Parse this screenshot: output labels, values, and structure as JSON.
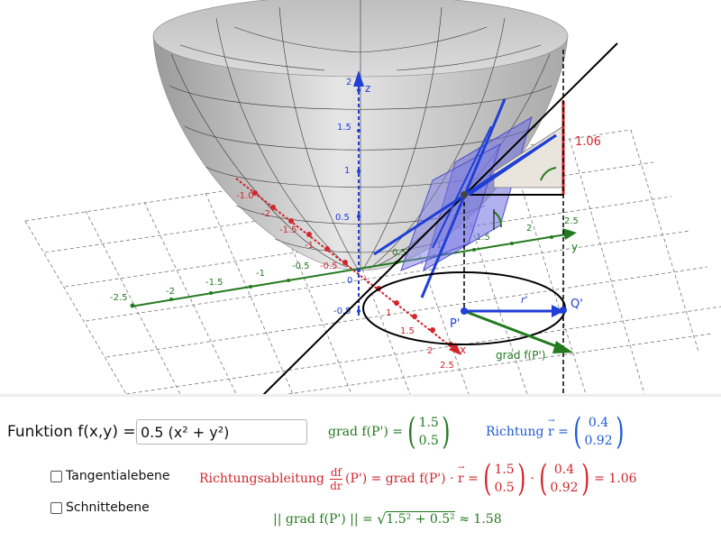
{
  "view3d": {
    "axis_labels": {
      "x": "x",
      "y": "y",
      "z": "z"
    },
    "z_ticks": [
      "2",
      "1.5",
      "1",
      "0.5",
      "0",
      "-0.5"
    ],
    "y_ticks": [
      "-2.5",
      "-2",
      "-1.5",
      "-1",
      "-0.5",
      "0.5",
      "1",
      "1.5",
      "2",
      "2.5"
    ],
    "x_ticks": [
      "-1.0",
      "-2",
      "-1.5",
      "-1",
      "-0.5",
      "1",
      "1.5",
      "2",
      "2.5"
    ],
    "point_P": "P'",
    "point_Q": "Q'",
    "vector_r": "r'",
    "grad_label": "grad f(P')",
    "height_label": "1.06",
    "colors": {
      "x_axis": "#d2262c",
      "y_axis": "#237a1f",
      "z_axis": "#1f3fd6",
      "surface": "#c8c8c8",
      "plane": "#6f6fe0"
    }
  },
  "controls": {
    "function_label": "Funktion f(x,y) =",
    "function_value": "0.5 (x² + y²)",
    "tangent_label": "Tangentialebene",
    "section_label": "Schnittebene"
  },
  "formulas": {
    "grad": {
      "prefix": "grad f(P') =",
      "v1": "1.5",
      "v2": "0.5"
    },
    "richtung": {
      "prefix": "Richtung",
      "vec": "r",
      "eq": "=",
      "v1": "0.4",
      "v2": "0.92"
    },
    "ableitung": {
      "prefix": "Richtungsableitung",
      "df": "df",
      "dr": "dr",
      "mid": "(P') = grad f(P') ·",
      "vec": "r",
      "eq": "=",
      "a1": "1.5",
      "a2": "0.5",
      "dot": "·",
      "b1": "0.4",
      "b2": "0.92",
      "result": "= 1.06"
    },
    "norm": {
      "text": "|| grad f(P') ||  =",
      "sqrt_content": "1.5² + 0.5²",
      "approx": "≈ 1.58"
    }
  }
}
